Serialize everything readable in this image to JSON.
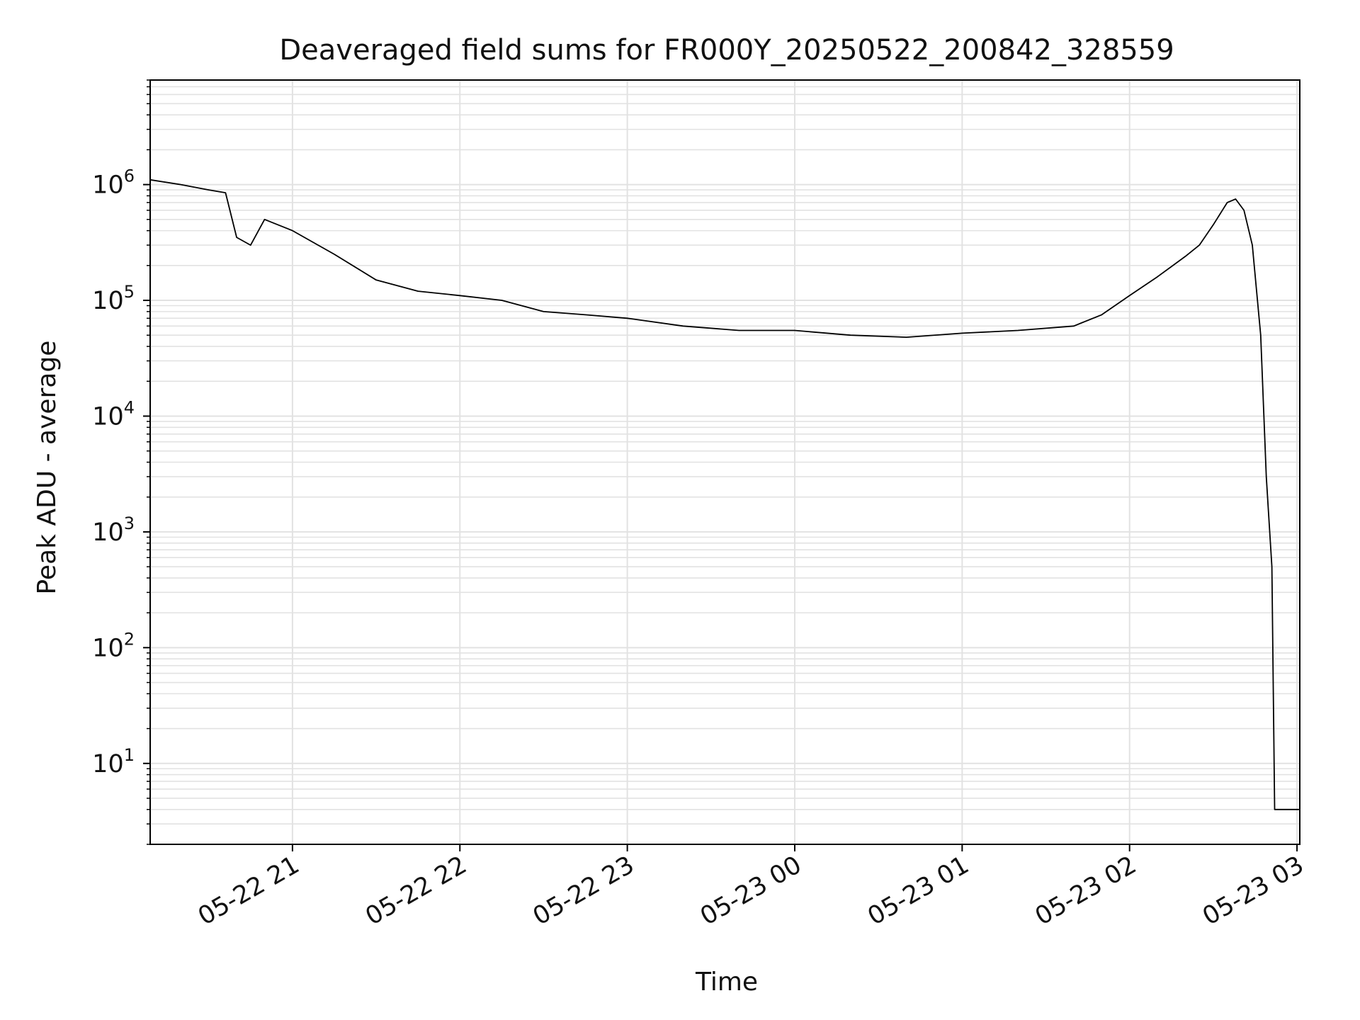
{
  "chart_data": {
    "type": "line",
    "title": "Deaveraged field sums for FR000Y_20250522_200842_328559",
    "xlabel": "Time",
    "ylabel": "Peak ADU - average",
    "yscale": "log",
    "ylim": [
      2,
      8000000
    ],
    "xlim": [
      "2025-05-22 20:09",
      "2025-05-23 03:01"
    ],
    "grid": true,
    "x_tick_labels": [
      "05-22 21",
      "05-22 22",
      "05-22 23",
      "05-23 00",
      "05-23 01",
      "05-23 02",
      "05-23 03"
    ],
    "y_tick_labels": [
      {
        "base": "10",
        "exp": "1"
      },
      {
        "base": "10",
        "exp": "2"
      },
      {
        "base": "10",
        "exp": "3"
      },
      {
        "base": "10",
        "exp": "4"
      },
      {
        "base": "10",
        "exp": "5"
      },
      {
        "base": "10",
        "exp": "6"
      }
    ],
    "series": [
      {
        "color": "#000000",
        "x": [
          "2025-05-22 20:09",
          "2025-05-22 20:20",
          "2025-05-22 20:30",
          "2025-05-22 20:36",
          "2025-05-22 20:40",
          "2025-05-22 20:45",
          "2025-05-22 20:50",
          "2025-05-22 21:00",
          "2025-05-22 21:15",
          "2025-05-22 21:30",
          "2025-05-22 21:45",
          "2025-05-22 22:00",
          "2025-05-22 22:15",
          "2025-05-22 22:30",
          "2025-05-22 22:45",
          "2025-05-22 23:00",
          "2025-05-22 23:20",
          "2025-05-22 23:40",
          "2025-05-23 00:00",
          "2025-05-23 00:20",
          "2025-05-23 00:40",
          "2025-05-23 01:00",
          "2025-05-23 01:20",
          "2025-05-23 01:40",
          "2025-05-23 01:50",
          "2025-05-23 02:00",
          "2025-05-23 02:10",
          "2025-05-23 02:20",
          "2025-05-23 02:25",
          "2025-05-23 02:30",
          "2025-05-23 02:35",
          "2025-05-23 02:38",
          "2025-05-23 02:41",
          "2025-05-23 02:44",
          "2025-05-23 02:47",
          "2025-05-23 02:49",
          "2025-05-23 02:51",
          "2025-05-23 02:52",
          "2025-05-23 02:53",
          "2025-05-23 02:55",
          "2025-05-23 03:01"
        ],
        "y": [
          1100000,
          1000000,
          900000,
          850000,
          350000,
          300000,
          500000,
          400000,
          250000,
          150000,
          120000,
          110000,
          100000,
          80000,
          75000,
          70000,
          60000,
          55000,
          55000,
          50000,
          48000,
          52000,
          55000,
          60000,
          75000,
          110000,
          160000,
          240000,
          300000,
          450000,
          700000,
          750000,
          600000,
          300000,
          50000,
          3000,
          500,
          4,
          4,
          4,
          4
        ]
      }
    ]
  }
}
